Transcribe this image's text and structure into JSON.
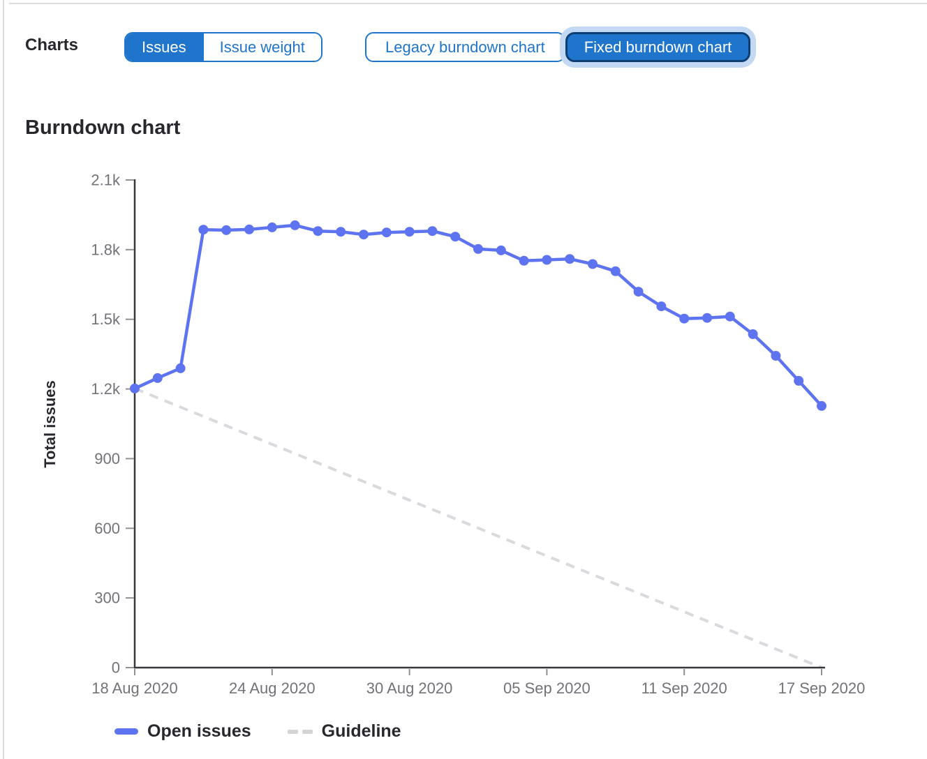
{
  "toolbar": {
    "charts_label": "Charts",
    "metric_toggle": [
      {
        "label": "Issues",
        "selected": true
      },
      {
        "label": "Issue weight",
        "selected": false
      }
    ],
    "chart_type_toggle": [
      {
        "label": "Legacy burndown chart",
        "selected": false
      },
      {
        "label": "Fixed burndown chart",
        "selected": true,
        "focused": true
      }
    ]
  },
  "heading": {
    "title": "Burndown chart"
  },
  "colors": {
    "action_blue": "#1f75cb",
    "selected_border": "#0e3f74",
    "focus_halo": "#c3d8f2",
    "line_blue": "#5e73f0",
    "guideline_gray": "#dadade",
    "axis_dark": "#37363b",
    "tick_gray": "#909095",
    "text_dark": "#28272d",
    "text_muted": "#737278",
    "border_gray": "#dcdcde"
  },
  "chart_data": {
    "type": "line",
    "title": "Burndown chart",
    "xlabel": "",
    "ylabel": "Total issues",
    "ylim": [
      0,
      2100
    ],
    "grid": false,
    "legend_position": "bottom",
    "y_ticks": [
      {
        "label": "2.1k",
        "value": 2100
      },
      {
        "label": "1.8k",
        "value": 1800
      },
      {
        "label": "1.5k",
        "value": 1500
      },
      {
        "label": "1.2k",
        "value": 1200
      },
      {
        "label": "900",
        "value": 900
      },
      {
        "label": "600",
        "value": 600
      },
      {
        "label": "300",
        "value": 300
      },
      {
        "label": "0",
        "value": 0
      }
    ],
    "x_tick_indices": [
      0,
      6,
      12,
      18,
      24,
      30
    ],
    "x_tick_labels": [
      "18 Aug 2020",
      "24 Aug 2020",
      "30 Aug 2020",
      "05 Sep 2020",
      "11 Sep 2020",
      "17 Sep 2020"
    ],
    "x_dates": [
      "18 Aug 2020",
      "19 Aug 2020",
      "20 Aug 2020",
      "21 Aug 2020",
      "22 Aug 2020",
      "23 Aug 2020",
      "24 Aug 2020",
      "25 Aug 2020",
      "26 Aug 2020",
      "27 Aug 2020",
      "28 Aug 2020",
      "29 Aug 2020",
      "30 Aug 2020",
      "31 Aug 2020",
      "01 Sep 2020",
      "02 Sep 2020",
      "03 Sep 2020",
      "04 Sep 2020",
      "05 Sep 2020",
      "06 Sep 2020",
      "07 Sep 2020",
      "08 Sep 2020",
      "09 Sep 2020",
      "10 Sep 2020",
      "11 Sep 2020",
      "12 Sep 2020",
      "13 Sep 2020",
      "14 Sep 2020",
      "15 Sep 2020",
      "16 Sep 2020",
      "17 Sep 2020"
    ],
    "series": [
      {
        "name": "Open issues",
        "color": "#5e73f0",
        "values": [
          1202,
          1247,
          1289,
          1886,
          1884,
          1887,
          1896,
          1905,
          1880,
          1877,
          1865,
          1874,
          1877,
          1880,
          1856,
          1803,
          1797,
          1752,
          1756,
          1760,
          1738,
          1707,
          1619,
          1556,
          1503,
          1506,
          1512,
          1436,
          1343,
          1235,
          1127
        ]
      }
    ],
    "guideline": {
      "name": "Guideline",
      "color": "#dadade",
      "start_value": 1202,
      "end_value": 0
    },
    "legend": [
      {
        "label": "Open issues",
        "swatch": "solid-blue"
      },
      {
        "label": "Guideline",
        "swatch": "dashed-gray"
      }
    ]
  }
}
